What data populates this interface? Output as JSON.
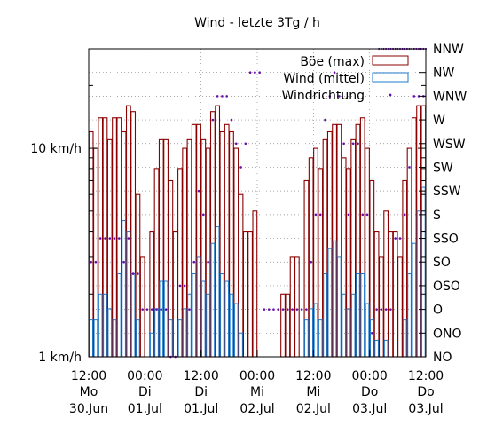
{
  "chart_data": {
    "type": "bar",
    "title": "Wind  -  letzte 3Tg / h",
    "y_scale": "log",
    "ylim": [
      1,
      30
    ],
    "y_ticks": [
      {
        "value": 1,
        "label": "1 km/h"
      },
      {
        "value": 10,
        "label": "10 km/h"
      }
    ],
    "y2_labels": [
      "NO",
      "ONO",
      "O",
      "OSO",
      "SO",
      "SSO",
      "S",
      "SSW",
      "SW",
      "WSW",
      "W",
      "WNW",
      "NW",
      "NNW"
    ],
    "x_ticks": [
      {
        "hour": 0,
        "l1": "12:00",
        "l2": "Mo",
        "l3": "30.Jun"
      },
      {
        "hour": 12,
        "l1": "00:00",
        "l2": "Di",
        "l3": "01.Jul"
      },
      {
        "hour": 24,
        "l1": "12:00",
        "l2": "Di",
        "l3": "01.Jul"
      },
      {
        "hour": 36,
        "l1": "00:00",
        "l2": "Mi",
        "l3": "02.Jul"
      },
      {
        "hour": 48,
        "l1": "12:00",
        "l2": "Mi",
        "l3": "02.Jul"
      },
      {
        "hour": 60,
        "l1": "00:00",
        "l2": "Do",
        "l3": "03.Jul"
      },
      {
        "hour": 72,
        "l1": "12:00",
        "l2": "Do",
        "l3": "03.Jul"
      }
    ],
    "legend": [
      {
        "label": "Böe (max)",
        "kind": "box",
        "color": "#8b0000"
      },
      {
        "label": "Wind (mittel)",
        "kind": "box",
        "color": "#1f78c8"
      },
      {
        "label": "Windrichtung",
        "kind": "dot",
        "color": "#6a0dad"
      }
    ],
    "series": [
      {
        "name": "Böe (max)",
        "color": "#8b0000",
        "values": [
          12,
          10,
          14,
          14,
          11,
          14,
          14,
          12,
          16,
          15,
          6,
          3,
          1,
          4,
          8,
          11,
          11,
          7,
          4,
          8,
          10,
          11,
          13,
          13,
          11,
          10,
          15,
          16,
          12,
          13,
          12,
          10,
          6,
          4,
          4,
          5,
          1,
          1,
          1,
          1,
          1,
          2,
          2,
          3,
          3,
          1,
          7,
          9,
          10,
          8,
          11,
          12,
          13,
          13,
          9,
          8,
          11,
          13,
          14,
          10,
          7,
          4,
          3,
          5,
          4,
          4,
          3,
          7,
          10,
          14,
          16,
          16
        ]
      },
      {
        "name": "Wind (mittel)",
        "color": "#1f78c8",
        "values": [
          1.5,
          1.5,
          2,
          2,
          1.7,
          1.5,
          2.5,
          4.5,
          4,
          2.5,
          1.5,
          1,
          1,
          1.3,
          1.7,
          2.3,
          2.3,
          1.5,
          1,
          1.5,
          1.7,
          2,
          2.5,
          3,
          2.3,
          2,
          3.5,
          4.2,
          2.5,
          2.3,
          2,
          1.8,
          1.3,
          1,
          1,
          1,
          1,
          1,
          1,
          1,
          1,
          1,
          1,
          1,
          1,
          1,
          1.5,
          1.7,
          1.8,
          1.5,
          2.5,
          3.3,
          3.6,
          3,
          2,
          1.7,
          2,
          2.5,
          2.5,
          1.8,
          1.5,
          1.2,
          1,
          1.2,
          1,
          1,
          1,
          1.5,
          2.5,
          3.5,
          5,
          6.5
        ]
      },
      {
        "name": "Windrichtung",
        "color": "#6a0dad",
        "values": [
          4,
          4,
          5,
          5,
          5,
          5,
          5,
          4,
          5,
          3.5,
          3.5,
          2,
          2,
          2,
          2,
          2,
          2,
          0,
          0,
          3,
          3,
          2,
          4,
          7,
          6,
          4,
          10,
          11,
          11,
          11,
          10,
          9,
          8,
          9,
          12,
          12,
          12,
          2,
          2,
          2,
          2,
          2,
          2,
          2,
          2,
          2,
          2,
          4,
          6,
          6,
          10,
          11,
          12,
          11,
          9,
          6,
          9,
          9,
          6,
          6,
          1,
          2,
          2,
          2,
          2,
          5,
          5,
          6,
          8,
          11,
          11,
          11
        ]
      }
    ],
    "nnw_dot_run_hours": [
      62,
      72
    ]
  }
}
